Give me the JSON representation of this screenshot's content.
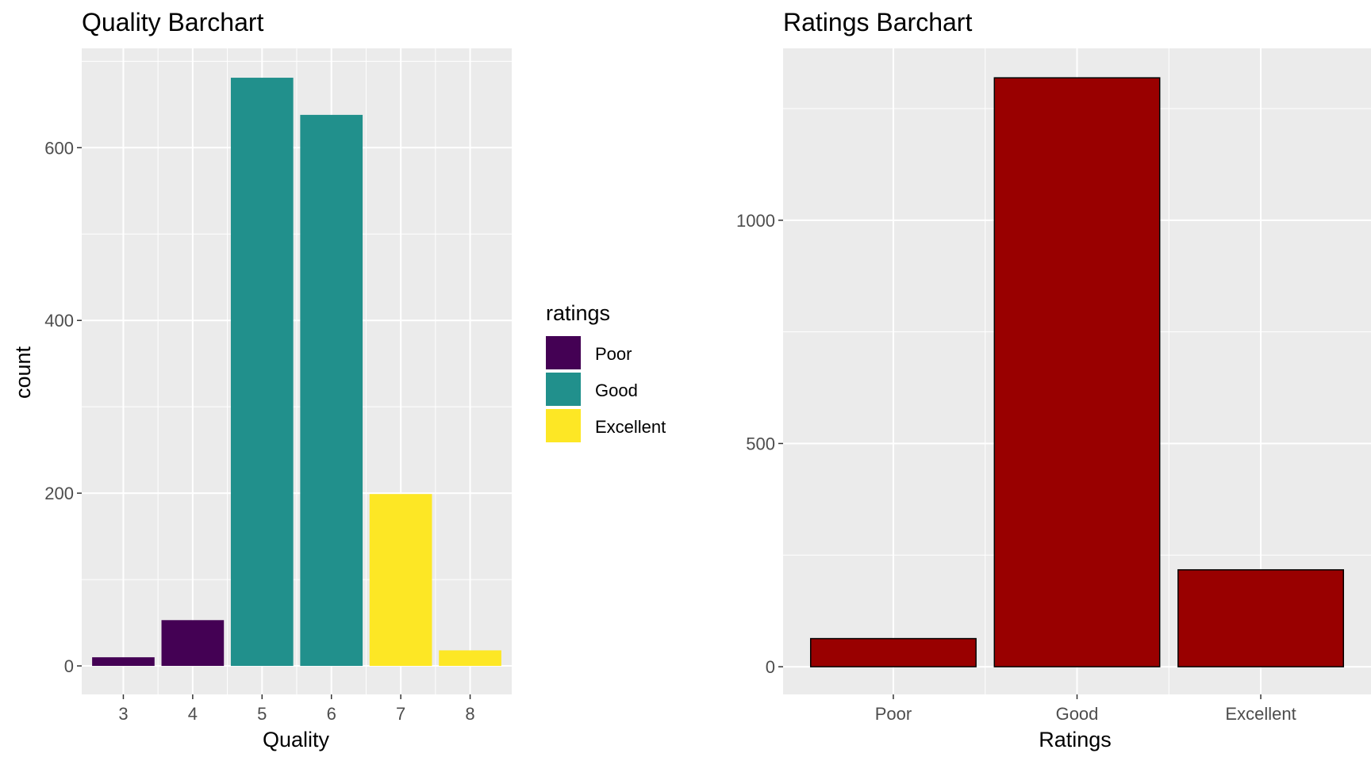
{
  "colors": {
    "panel_bg": "#EBEBEB",
    "grid_major": "#FFFFFF",
    "grid_minor": "#F7F7F7",
    "tick": "#333333",
    "tick_text": "#4D4D4D",
    "poor": "#440154",
    "good": "#21908C",
    "excellent": "#FDE725",
    "ratings_fill": "#990000",
    "ratings_outline": "#000000"
  },
  "chart_data": [
    {
      "type": "bar",
      "title": "Quality Barchart",
      "xlabel": "Quality",
      "ylabel": "count",
      "categories": [
        "3",
        "4",
        "5",
        "6",
        "7",
        "8"
      ],
      "values": [
        10,
        53,
        681,
        638,
        199,
        18
      ],
      "groups": [
        "Poor",
        "Poor",
        "Good",
        "Good",
        "Excellent",
        "Excellent"
      ],
      "ylim": [
        -33,
        715
      ],
      "yticks": [
        0,
        200,
        400,
        600
      ],
      "ytick_labels": [
        "0",
        "200",
        "400",
        "600"
      ],
      "grid": true,
      "legend": {
        "title": "ratings",
        "position": "right",
        "items": [
          {
            "label": "Poor",
            "color_key": "poor"
          },
          {
            "label": "Good",
            "color_key": "good"
          },
          {
            "label": "Excellent",
            "color_key": "excellent"
          }
        ]
      }
    },
    {
      "type": "bar",
      "title": "Ratings Barchart",
      "xlabel": "Ratings",
      "ylabel": "",
      "categories": [
        "Poor",
        "Good",
        "Excellent"
      ],
      "values": [
        63,
        1319,
        217
      ],
      "ylim": [
        -62,
        1385
      ],
      "yticks": [
        0,
        500,
        1000
      ],
      "ytick_labels": [
        "0",
        "500",
        "1000"
      ],
      "grid": true
    }
  ]
}
